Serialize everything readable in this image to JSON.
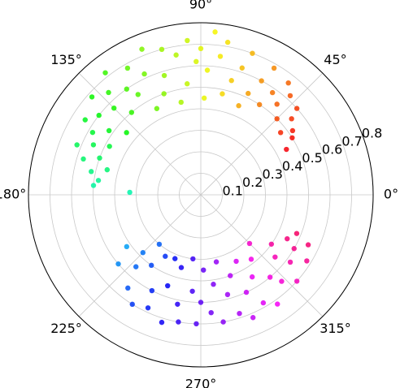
{
  "chart_data": {
    "type": "polar_scatter",
    "colormap": "hsv",
    "clim": [
      30,
      360
    ],
    "rlim": [
      0,
      0.8
    ],
    "rticks": [
      0.1,
      0.2,
      0.3,
      0.4,
      0.5,
      0.6,
      0.7,
      0.8
    ],
    "rlabel_angle": 22.5,
    "thetaticks": [
      {
        "value": 0,
        "label": "0°"
      },
      {
        "value": 45,
        "label": "45°"
      },
      {
        "value": 90,
        "label": "90°"
      },
      {
        "value": 135,
        "label": "135°"
      },
      {
        "value": 180,
        "label": "180°"
      },
      {
        "value": 225,
        "label": "225°"
      },
      {
        "value": 270,
        "label": "270°"
      },
      {
        "value": 315,
        "label": "315°"
      }
    ],
    "grid": true,
    "theta": [
      28,
      32,
      35,
      38,
      40,
      42,
      45,
      48,
      50,
      52,
      55,
      57,
      60,
      62,
      65,
      67,
      70,
      72,
      75,
      78,
      80,
      82,
      85,
      87,
      88,
      90,
      92,
      95,
      97,
      100,
      102,
      105,
      107,
      110,
      112,
      115,
      117,
      120,
      122,
      125,
      128,
      130,
      132,
      135,
      138,
      140,
      142,
      145,
      147,
      150,
      152,
      155,
      158,
      160,
      163,
      165,
      168,
      172,
      175,
      178,
      215,
      220,
      225,
      228,
      230,
      232,
      235,
      238,
      240,
      243,
      245,
      248,
      250,
      253,
      255,
      258,
      260,
      263,
      265,
      268,
      270,
      272,
      275,
      278,
      280,
      283,
      285,
      288,
      290,
      293,
      295,
      298,
      300,
      302,
      305,
      308,
      310,
      313,
      315,
      318,
      320,
      323,
      325,
      328,
      330,
      333,
      335,
      338
    ],
    "r": [
      0.45,
      0.5,
      0.52,
      0.47,
      0.55,
      0.6,
      0.5,
      0.62,
      0.55,
      0.66,
      0.58,
      0.5,
      0.68,
      0.6,
      0.52,
      0.45,
      0.7,
      0.62,
      0.55,
      0.48,
      0.72,
      0.65,
      0.76,
      0.58,
      0.45,
      0.68,
      0.62,
      0.72,
      0.52,
      0.66,
      0.44,
      0.7,
      0.58,
      0.5,
      0.73,
      0.62,
      0.45,
      0.68,
      0.55,
      0.6,
      0.72,
      0.5,
      0.64,
      0.57,
      0.68,
      0.45,
      0.6,
      0.52,
      0.64,
      0.58,
      0.48,
      0.55,
      0.62,
      0.5,
      0.57,
      0.45,
      0.52,
      0.48,
      0.5,
      0.33,
      0.42,
      0.5,
      0.38,
      0.45,
      0.3,
      0.55,
      0.4,
      0.6,
      0.33,
      0.5,
      0.58,
      0.32,
      0.45,
      0.62,
      0.35,
      0.52,
      0.6,
      0.3,
      0.45,
      0.6,
      0.5,
      0.35,
      0.55,
      0.42,
      0.6,
      0.32,
      0.48,
      0.58,
      0.4,
      0.62,
      0.5,
      0.35,
      0.58,
      0.45,
      0.62,
      0.38,
      0.5,
      0.55,
      0.32,
      0.6,
      0.45,
      0.52,
      0.4,
      0.58,
      0.5,
      0.45,
      0.55,
      0.48
    ]
  }
}
